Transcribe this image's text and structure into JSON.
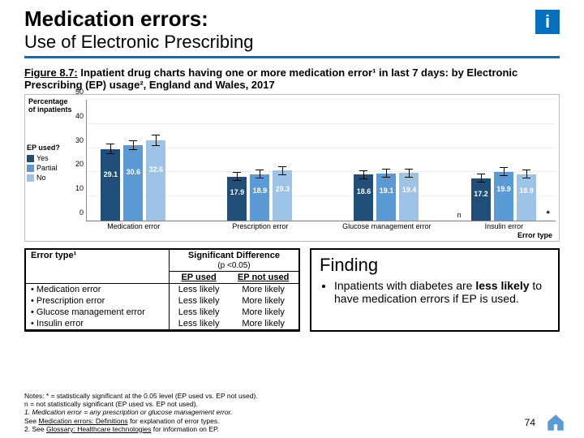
{
  "title": {
    "main": "Medication errors:",
    "sub": "Use of Electronic Prescribing"
  },
  "info_icon": "i",
  "figure_caption_prefix": "Figure 8.7:",
  "figure_caption_rest": " Inpatient drug charts having one or more medication error¹ in last 7 days: by Electronic Prescribing (EP) usage², England and Wales, 2017",
  "y_axis_label_l1": "Percentage",
  "y_axis_label_l2": "of inpatients",
  "x_axis_label": "Error type",
  "legend": {
    "title": "EP used?",
    "items": [
      {
        "label": "Yes",
        "color": "#1f4e79"
      },
      {
        "label": "Partial",
        "color": "#5b9bd5"
      },
      {
        "label": "No",
        "color": "#9dc3e6"
      }
    ]
  },
  "y_ticks": [
    0,
    10,
    20,
    30,
    40,
    50
  ],
  "y_max": 50,
  "groups": [
    {
      "label": "Medication error",
      "left_pct": 3,
      "bars": [
        {
          "v": 29.1,
          "c": "#1f4e79",
          "e": 2.2
        },
        {
          "v": 30.6,
          "c": "#5b9bd5",
          "e": 2.0
        },
        {
          "v": 32.6,
          "c": "#9dc3e6",
          "e": 2.2,
          "bold": true
        }
      ],
      "sig_star_x": 32
    },
    {
      "label": "Prescription error",
      "left_pct": 30,
      "bars": [
        {
          "v": 17.9,
          "c": "#1f4e79",
          "e": 1.8
        },
        {
          "v": 18.9,
          "c": "#5b9bd5",
          "e": 1.8
        },
        {
          "v": 20.3,
          "c": "#9dc3e6",
          "e": 1.8
        }
      ],
      "sig_star_x": 58
    },
    {
      "label": "Glucose management error",
      "left_pct": 57,
      "bars": [
        {
          "v": 18.6,
          "c": "#1f4e79",
          "e": 1.8
        },
        {
          "v": 19.1,
          "c": "#5b9bd5",
          "e": 1.8
        },
        {
          "v": 19.4,
          "c": "#9dc3e6",
          "e": 1.8
        }
      ],
      "sig_n_x": 79
    },
    {
      "label": "Insulin error",
      "left_pct": 82,
      "bars": [
        {
          "v": 17.2,
          "c": "#1f4e79",
          "e": 1.8
        },
        {
          "v": 19.9,
          "c": "#5b9bd5",
          "e": 1.8
        },
        {
          "v": 18.9,
          "c": "#9dc3e6",
          "e": 1.8
        }
      ],
      "sig_star_x": 98
    }
  ],
  "table": {
    "head_left": "Error type¹",
    "head_right_l1": "Significant Difference",
    "head_right_l2": "(p <0.05)",
    "sub_left": "EP used",
    "sub_right": "EP not used",
    "rows": [
      {
        "label": "Medication error",
        "ll": "Less likely",
        "ml": "More likely"
      },
      {
        "label": "Prescription error",
        "ll": "Less likely",
        "ml": "More likely"
      },
      {
        "label": "Glucose management error",
        "ll": "Less likely",
        "ml": "More likely"
      },
      {
        "label": "Insulin error",
        "ll": "Less likely",
        "ml": "More likely"
      }
    ]
  },
  "finding": {
    "title": "Finding",
    "bullet_pre": "Inpatients with diabetes are ",
    "bullet_bold": "less likely",
    "bullet_post": " to have medication errors if EP is used."
  },
  "notes": {
    "l1": "Notes: * = statistically significant at the 0.05 level (EP used vs. EP not used).",
    "l2": "n = not statistically significant (EP used vs. EP not used).",
    "l3": "1. Medication error = any prescription or glucose management error.",
    "l4_pre": "See ",
    "l4_link": "Medication errors: Definitions",
    "l4_post": " for explanation of error types.",
    "l5_pre": "2. See ",
    "l5_link": "Glossary: Healthcare technologies",
    "l5_post": " for information on EP."
  },
  "page_number": "74",
  "icon_color": "#5b9bd5"
}
